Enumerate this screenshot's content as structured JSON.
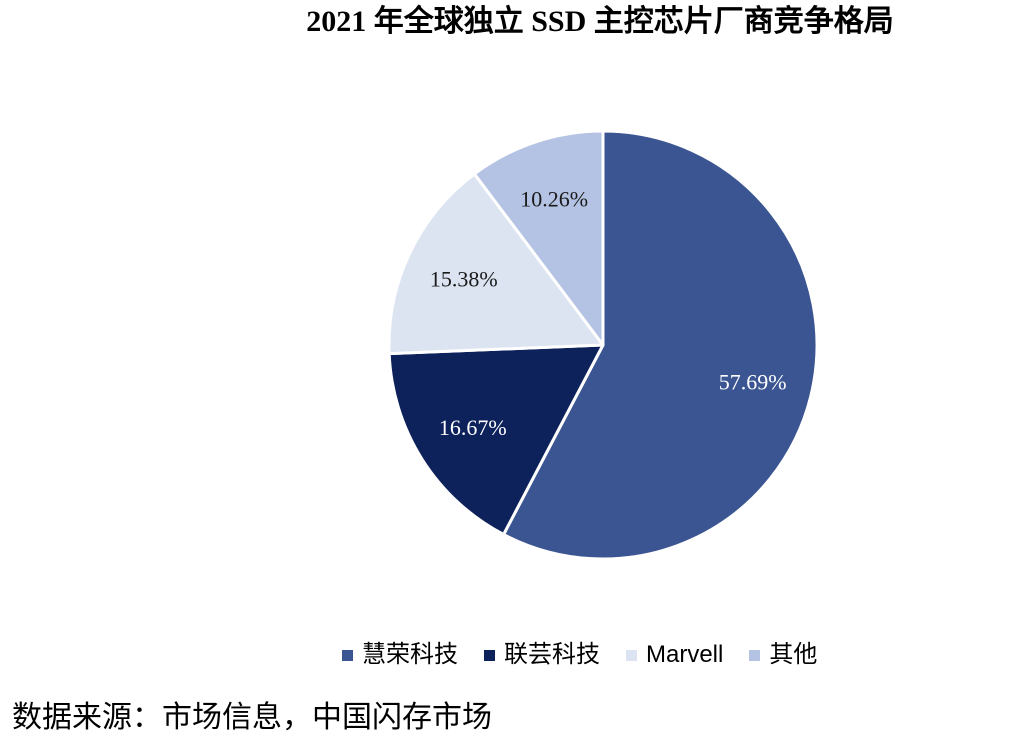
{
  "chart_data": {
    "type": "pie",
    "title": "2021 年全球独立 SSD 主控芯片厂商竞争格局",
    "slices": [
      {
        "label": "慧荣科技",
        "value": 57.69,
        "data_label": "57.69%",
        "color": "#3B5592",
        "label_color": "#FFFFFF"
      },
      {
        "label": "联芸科技",
        "value": 16.67,
        "data_label": "16.67%",
        "color": "#0D215B",
        "label_color": "#FFFFFF"
      },
      {
        "label": "Marvell",
        "value": 15.38,
        "data_label": "15.38%",
        "color": "#DCE3F1",
        "label_color": "#1A1A1A"
      },
      {
        "label": "其他",
        "value": 10.26,
        "data_label": "10.26%",
        "color": "#B4C3E3",
        "label_color": "#1A1A1A"
      }
    ],
    "legend_position": "bottom"
  },
  "source": "数据来源：市场信息，中国闪存市场"
}
